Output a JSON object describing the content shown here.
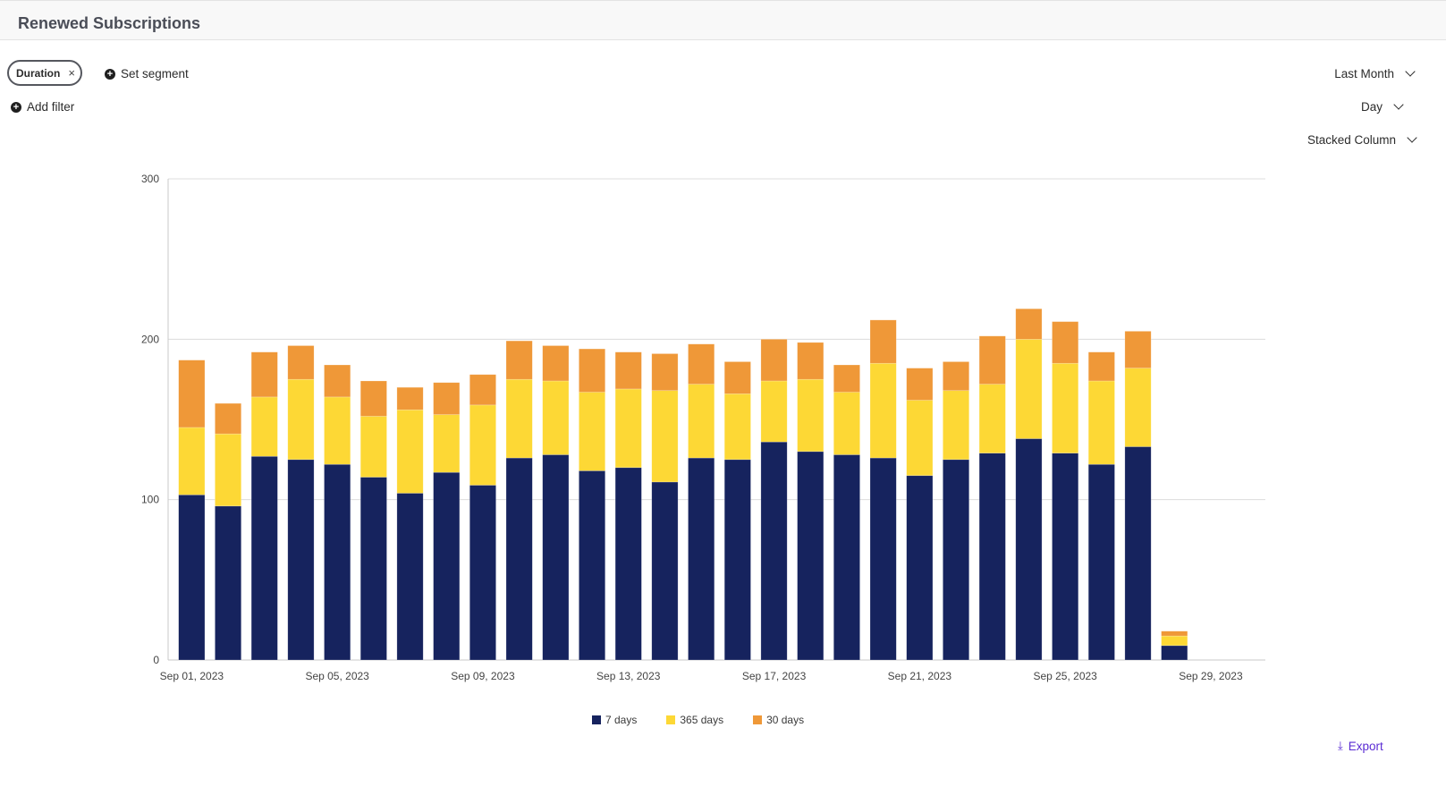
{
  "header": {
    "title": "Renewed Subscriptions"
  },
  "filters": {
    "chip_label": "Duration",
    "chip_close": "×",
    "set_segment": "Set segment",
    "add_filter": "Add filter"
  },
  "controls": {
    "date_range": "Last Month",
    "granularity": "Day",
    "chart_type": "Stacked Column"
  },
  "export_label": "Export",
  "icons": {
    "plus": "plus-circle-icon",
    "close": "close-icon",
    "chevron": "chevron-down-icon",
    "download": "download-icon"
  },
  "colors": {
    "seven_days": "#16235e",
    "year": "#fdd835",
    "thirty": "#ef9838"
  },
  "chart_data": {
    "type": "bar",
    "stacked": true,
    "title": "",
    "xlabel": "",
    "ylabel": "",
    "ylim": [
      0,
      300
    ],
    "y_ticks": [
      "0",
      "100",
      "200",
      "300"
    ],
    "x_tick_labels": [
      "Sep 01, 2023",
      "Sep 05, 2023",
      "Sep 09, 2023",
      "Sep 13, 2023",
      "Sep 17, 2023",
      "Sep 21, 2023",
      "Sep 25, 2023",
      "Sep 29, 2023"
    ],
    "categories": [
      "Sep 01, 2023",
      "Sep 02, 2023",
      "Sep 03, 2023",
      "Sep 04, 2023",
      "Sep 05, 2023",
      "Sep 06, 2023",
      "Sep 07, 2023",
      "Sep 08, 2023",
      "Sep 09, 2023",
      "Sep 10, 2023",
      "Sep 11, 2023",
      "Sep 12, 2023",
      "Sep 13, 2023",
      "Sep 14, 2023",
      "Sep 15, 2023",
      "Sep 16, 2023",
      "Sep 17, 2023",
      "Sep 18, 2023",
      "Sep 19, 2023",
      "Sep 20, 2023",
      "Sep 21, 2023",
      "Sep 22, 2023",
      "Sep 23, 2023",
      "Sep 24, 2023",
      "Sep 25, 2023",
      "Sep 26, 2023",
      "Sep 27, 2023",
      "Sep 28, 2023",
      "Sep 29, 2023",
      "Sep 30, 2023"
    ],
    "series": [
      {
        "name": "7 days",
        "color": "#16235e",
        "values": [
          103,
          96,
          127,
          125,
          122,
          114,
          104,
          117,
          109,
          126,
          128,
          118,
          120,
          111,
          126,
          125,
          136,
          130,
          128,
          126,
          115,
          125,
          129,
          138,
          129,
          122,
          133,
          9,
          0,
          0
        ]
      },
      {
        "name": "365 days",
        "color": "#fdd835",
        "values": [
          42,
          45,
          37,
          50,
          42,
          38,
          52,
          36,
          50,
          49,
          46,
          49,
          49,
          57,
          46,
          41,
          38,
          45,
          39,
          59,
          47,
          43,
          43,
          62,
          56,
          52,
          49,
          6,
          0,
          0
        ]
      },
      {
        "name": "30 days",
        "color": "#ef9838",
        "values": [
          42,
          19,
          28,
          21,
          20,
          22,
          14,
          20,
          19,
          24,
          22,
          27,
          23,
          23,
          25,
          20,
          26,
          23,
          17,
          27,
          20,
          18,
          30,
          19,
          26,
          18,
          23,
          3,
          0,
          0
        ]
      }
    ],
    "legend_position": "bottom",
    "grid": true
  }
}
